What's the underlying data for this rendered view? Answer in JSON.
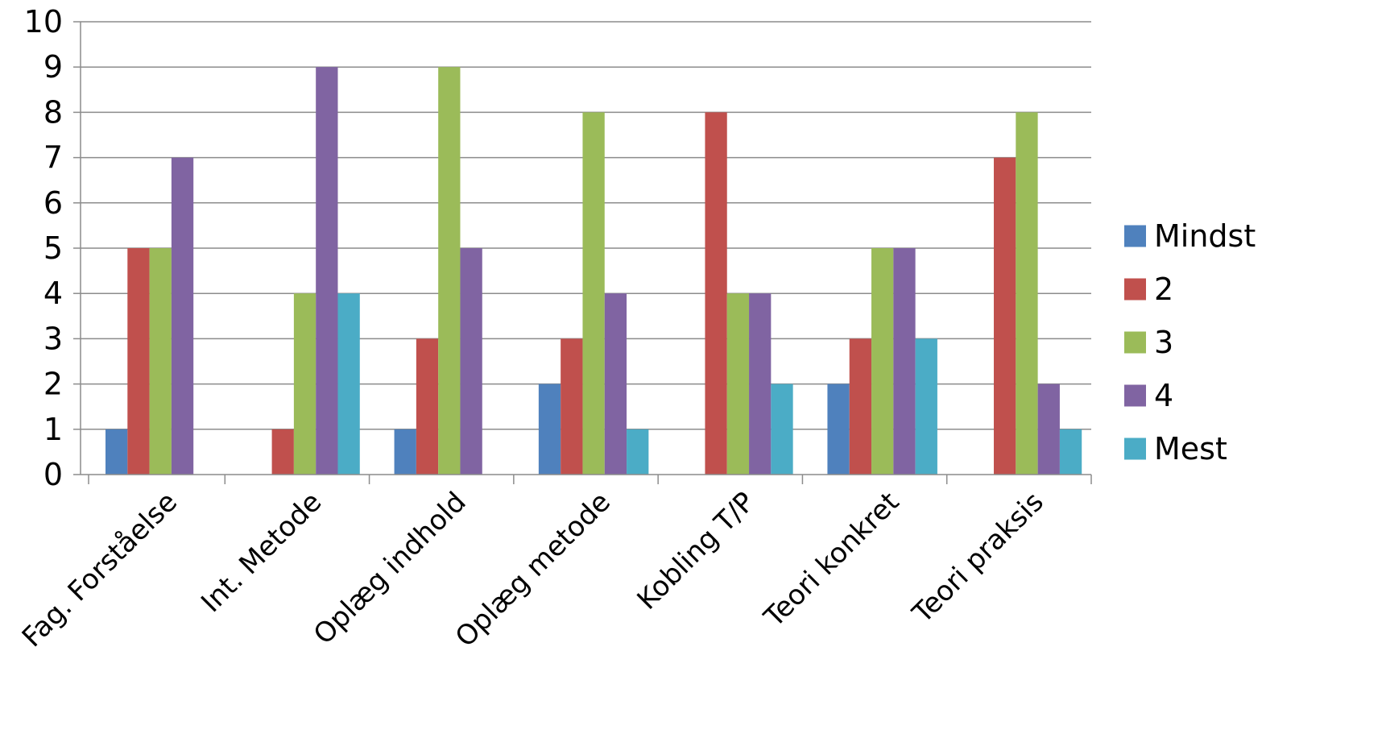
{
  "chart_data": {
    "type": "bar",
    "title": "",
    "xlabel": "",
    "ylabel": "",
    "ylim": [
      0,
      10
    ],
    "yticks": [
      "0",
      "1",
      "2",
      "3",
      "4",
      "5",
      "6",
      "7",
      "8",
      "9",
      "10"
    ],
    "grid": true,
    "legend_position": "right",
    "categories": [
      "Fag. Forståelse",
      "Int. Metode",
      "Oplæg indhold",
      "Oplæg metode",
      "Kobling T/P",
      "Teori konkret",
      "Teori praksis"
    ],
    "series": [
      {
        "name": "Mindst",
        "color": "#4F81BD",
        "values": [
          1,
          0,
          1,
          2,
          0,
          2,
          0
        ]
      },
      {
        "name": "2",
        "color": "#C0504D",
        "values": [
          5,
          1,
          3,
          3,
          8,
          3,
          7
        ]
      },
      {
        "name": "3",
        "color": "#9BBB59",
        "values": [
          5,
          4,
          9,
          8,
          4,
          5,
          8
        ]
      },
      {
        "name": "4",
        "color": "#8064A2",
        "values": [
          7,
          9,
          5,
          4,
          4,
          5,
          2
        ]
      },
      {
        "name": "Mest",
        "color": "#4BACC6",
        "values": [
          0,
          4,
          0,
          1,
          2,
          3,
          1
        ]
      }
    ]
  }
}
